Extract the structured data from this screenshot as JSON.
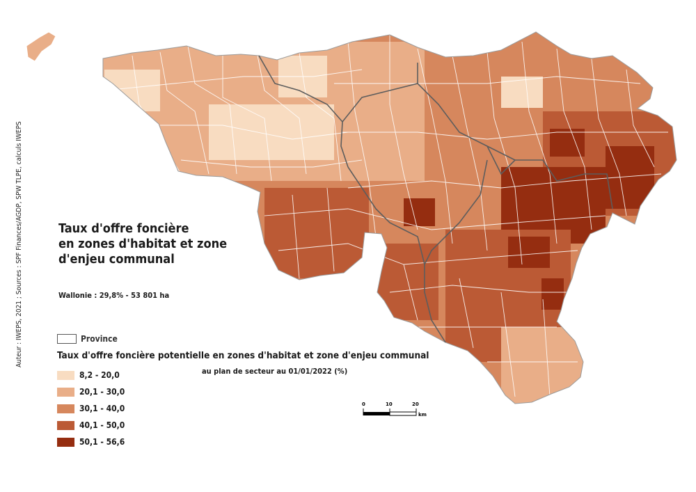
{
  "map": {
    "title_lines": [
      "Taux d'offre foncière",
      "en zones d'habitat et zone",
      "d'enjeu communal"
    ],
    "summary": "Wallonie : 29,8% - 53 801 ha",
    "credit": "Auteur : IWEPS, 2021 ; Sources : SPF Finances/AGDP, SPW TLPE, calculs IWEPS"
  },
  "legend": {
    "province_label": "Province",
    "title": "Taux d'offre foncière potentielle en zones d'habitat et zone  d'enjeu communal",
    "subtitle": "au plan de secteur au 01/01/2022 (%)",
    "classes": [
      {
        "label": "8,2 - 20,0",
        "color": "#f8dcc1"
      },
      {
        "label": "20,1 - 30,0",
        "color": "#e9ae88"
      },
      {
        "label": "30,1 - 40,0",
        "color": "#d6875d"
      },
      {
        "label": "40,1 - 50,0",
        "color": "#bb5a35"
      },
      {
        "label": "50,1 - 56,6",
        "color": "#952d10"
      }
    ]
  },
  "scale": {
    "ticks": [
      "0",
      "10",
      "20"
    ],
    "unit": "km"
  },
  "colors": {
    "border": "#ffffff",
    "province": "#5d5d5d"
  }
}
